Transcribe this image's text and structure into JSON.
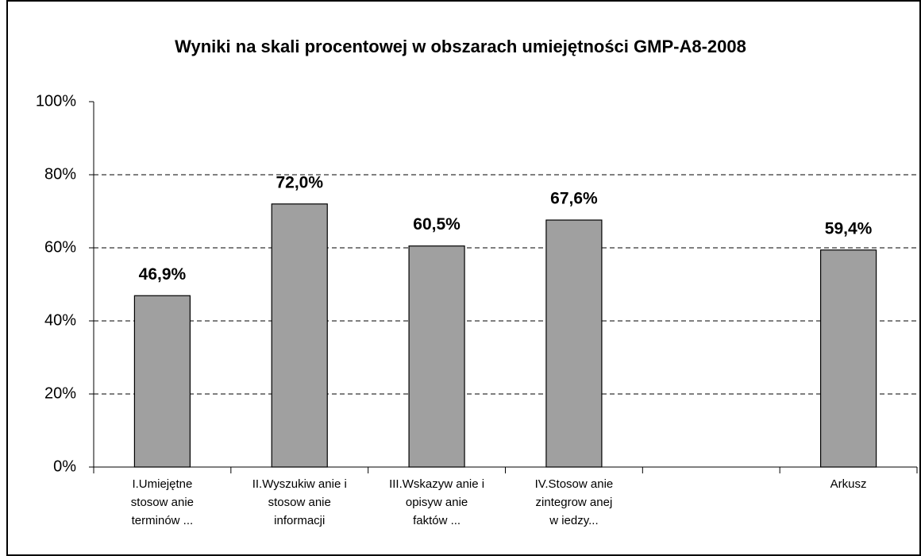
{
  "chart_data": {
    "type": "bar",
    "title": "Wyniki na skali procentowej w obszarach umiejętności GMP-A8-2008",
    "categories": [
      "I.Umiejętne\nstosow anie\nterminów ...",
      "II.Wyszukiw anie i\nstosow anie\ninformacji",
      "III.Wskazyw anie i\nopisyw anie\nfaktów ...",
      "IV.Stosow anie\nzintegrow anej\nw iedzy...",
      null,
      "Arkusz"
    ],
    "values": [
      46.9,
      72.0,
      60.5,
      67.6,
      null,
      59.4
    ],
    "value_labels": [
      "46,9%",
      "72,0%",
      "60,5%",
      "67,6%",
      null,
      "59,4%"
    ],
    "color": "#a0a0a0",
    "ylim": [
      0,
      100
    ],
    "yticks": [
      {
        "value": 0,
        "label": "0%"
      },
      {
        "value": 20,
        "label": "20%"
      },
      {
        "value": 40,
        "label": "40%"
      },
      {
        "value": 60,
        "label": "60%"
      },
      {
        "value": 80,
        "label": "80%"
      },
      {
        "value": 100,
        "label": "100%"
      }
    ],
    "grid": true
  }
}
